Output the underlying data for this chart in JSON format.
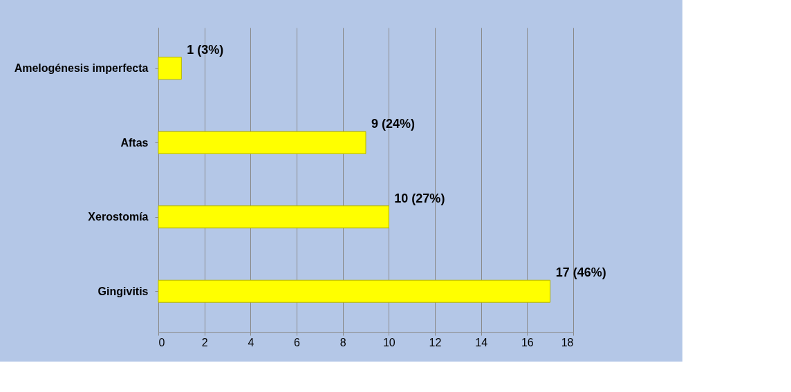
{
  "chart_data": {
    "type": "bar",
    "orientation": "horizontal",
    "categories": [
      "Amelogénesis imperfecta",
      "Aftas",
      "Xerostomía",
      "Gingivitis"
    ],
    "values": [
      1,
      9,
      10,
      17
    ],
    "value_labels": [
      "1 (3%)",
      "9 (24%)",
      "10 (27%)",
      "17 (46%)"
    ],
    "color": "#ffff00",
    "xlim": [
      0,
      18
    ],
    "xticks": [
      0,
      2,
      4,
      6,
      8,
      10,
      12,
      14,
      16,
      18
    ],
    "grid": "x"
  }
}
